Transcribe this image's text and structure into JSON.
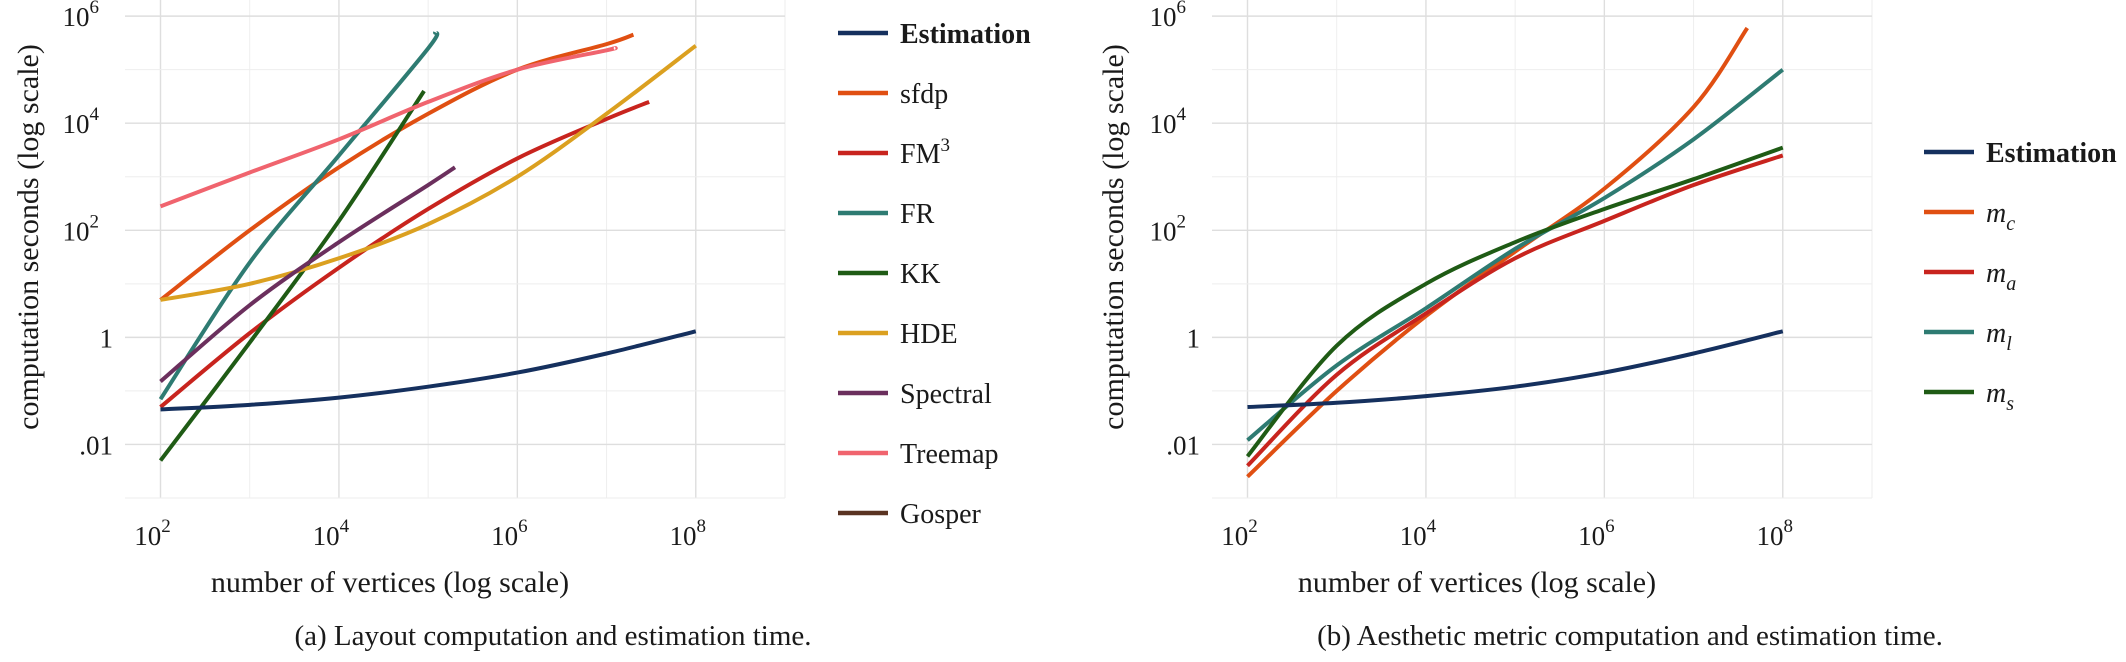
{
  "colors": {
    "estimation": "#15305e",
    "sfdp": "#e04f12",
    "fm3": "#c8241e",
    "fr": "#2e7b72",
    "kk": "#1f5b15",
    "hde": "#dba020",
    "spectral": "#6b2f5d",
    "treemap": "#f0646e",
    "gosper": "#5a3322"
  },
  "chart_data": [
    {
      "type": "line",
      "caption": "(a) Layout computation and estimation time.",
      "xlabel": "number of vertices (log scale)",
      "ylabel": "computation seconds (log scale)",
      "x_scale": "log",
      "y_scale": "log",
      "xlim": [
        40,
        1000000000
      ],
      "ylim": [
        0.001,
        2000000
      ],
      "x_ticks": [
        {
          "value": 100,
          "base": "10",
          "exp": "2"
        },
        {
          "value": 10000,
          "base": "10",
          "exp": "4"
        },
        {
          "value": 1000000,
          "base": "10",
          "exp": "6"
        },
        {
          "value": 100000000,
          "base": "10",
          "exp": "8"
        }
      ],
      "y_ticks": [
        {
          "value": 0.01,
          "label": ".01",
          "exp": ""
        },
        {
          "value": 1,
          "label": "1",
          "exp": ""
        },
        {
          "value": 100,
          "label": "10",
          "exp": "2"
        },
        {
          "value": 10000,
          "label": "10",
          "exp": "4"
        },
        {
          "value": 1000000,
          "label": "10",
          "exp": "6"
        }
      ],
      "grid": true,
      "legend_position": "right",
      "series": [
        {
          "name": "Estimation",
          "style": "bold",
          "color_key": "estimation",
          "x": [
            100,
            1000,
            10000,
            100000,
            1000000,
            10000000,
            100000000
          ],
          "y": [
            0.045,
            0.055,
            0.075,
            0.12,
            0.22,
            0.5,
            1.3
          ]
        },
        {
          "name": "sfdp",
          "color_key": "sfdp",
          "x": [
            100,
            1000,
            10000,
            100000,
            1000000,
            10000000,
            20000000
          ],
          "y": [
            5,
            100,
            1500,
            15000,
            100000,
            300000,
            450000
          ]
        },
        {
          "name": "FM",
          "name_sup": "3",
          "color_key": "fm3",
          "x": [
            100,
            1000,
            10000,
            100000,
            1000000,
            10000000,
            30000000
          ],
          "y": [
            0.05,
            1.2,
            20,
            250,
            2200,
            12000,
            25000
          ]
        },
        {
          "name": "FR",
          "color_key": "fr",
          "x": [
            100,
            1000,
            10000,
            100000,
            120000
          ],
          "y": [
            0.07,
            25,
            2500,
            250000,
            500000
          ]
        },
        {
          "name": "KK",
          "color_key": "kk",
          "x": [
            100,
            1000,
            10000,
            90000
          ],
          "y": [
            0.005,
            0.8,
            150,
            40000
          ]
        },
        {
          "name": "HDE",
          "color_key": "hde",
          "x": [
            100,
            1000,
            10000,
            100000,
            1000000,
            10000000,
            100000000
          ],
          "y": [
            5,
            10,
            30,
            130,
            1000,
            15000,
            280000
          ]
        },
        {
          "name": "Spectral",
          "color_key": "spectral",
          "x": [
            100,
            1000,
            10000,
            100000,
            200000
          ],
          "y": [
            0.15,
            4,
            60,
            700,
            1500
          ]
        },
        {
          "name": "Treemap",
          "color_key": "treemap",
          "x": [
            100,
            1000,
            10000,
            100000,
            1000000,
            10000000,
            12000000
          ],
          "y": [
            280,
            1200,
            5000,
            25000,
            100000,
            230000,
            250000
          ]
        },
        {
          "name": "Gosper",
          "color_key": "gosper",
          "x": [],
          "y": []
        }
      ]
    },
    {
      "type": "line",
      "caption": "(b) Aesthetic metric computation and estimation time.",
      "xlabel": "number of vertices (log scale)",
      "ylabel": "computation seconds (log scale)",
      "x_scale": "log",
      "y_scale": "log",
      "xlim": [
        40,
        1000000000
      ],
      "ylim": [
        0.001,
        2000000
      ],
      "x_ticks": [
        {
          "value": 100,
          "base": "10",
          "exp": "2"
        },
        {
          "value": 10000,
          "base": "10",
          "exp": "4"
        },
        {
          "value": 1000000,
          "base": "10",
          "exp": "6"
        },
        {
          "value": 100000000,
          "base": "10",
          "exp": "8"
        }
      ],
      "y_ticks": [
        {
          "value": 0.01,
          "label": ".01",
          "exp": ""
        },
        {
          "value": 1,
          "label": "1",
          "exp": ""
        },
        {
          "value": 100,
          "label": "10",
          "exp": "2"
        },
        {
          "value": 10000,
          "label": "10",
          "exp": "4"
        },
        {
          "value": 1000000,
          "label": "10",
          "exp": "6"
        }
      ],
      "grid": true,
      "legend_position": "right",
      "series": [
        {
          "name": "Estimation",
          "style": "bold",
          "color_key": "estimation",
          "x": [
            100,
            1000,
            10000,
            100000,
            1000000,
            10000000,
            100000000
          ],
          "y": [
            0.05,
            0.06,
            0.08,
            0.12,
            0.22,
            0.5,
            1.3
          ]
        },
        {
          "name": "m",
          "name_sub": "c",
          "style": "italic",
          "color_key": "sfdp",
          "x": [
            100,
            1000,
            10000,
            100000,
            1000000,
            10000000,
            40000000
          ],
          "y": [
            0.0025,
            0.1,
            2.5,
            40,
            600,
            20000,
            600000
          ]
        },
        {
          "name": "m",
          "name_sub": "a",
          "style": "italic",
          "color_key": "fm3",
          "x": [
            100,
            1000,
            10000,
            100000,
            1000000,
            10000000,
            100000000
          ],
          "y": [
            0.004,
            0.2,
            2.8,
            30,
            150,
            700,
            2500
          ]
        },
        {
          "name": "m",
          "name_sub": "l",
          "style": "italic",
          "color_key": "fr",
          "x": [
            100,
            1000,
            10000,
            100000,
            1000000,
            10000000,
            100000000
          ],
          "y": [
            0.012,
            0.3,
            3.5,
            45,
            400,
            5000,
            100000
          ]
        },
        {
          "name": "m",
          "name_sub": "s",
          "style": "italic",
          "color_key": "kk",
          "x": [
            100,
            1000,
            10000,
            100000,
            1000000,
            10000000,
            100000000
          ],
          "y": [
            0.006,
            0.7,
            10,
            60,
            250,
            900,
            3500
          ]
        }
      ]
    }
  ]
}
